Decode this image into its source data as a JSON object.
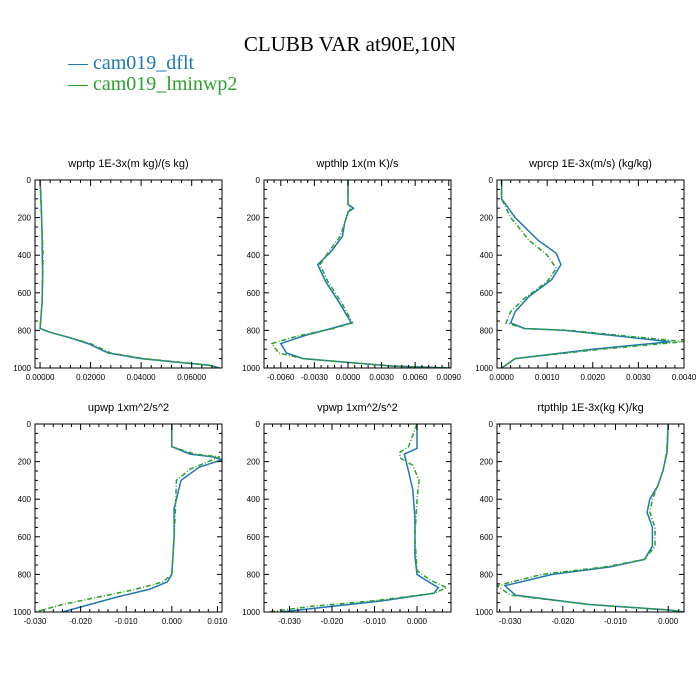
{
  "figure_title": "CLUBB VAR at90E,10N",
  "legend": [
    {
      "marker": "—",
      "label": "cam019_dflt",
      "color": "#1f77b4"
    },
    {
      "marker": "—",
      "label": "cam019_lminwp2",
      "color": "#2ca02c"
    }
  ],
  "chart_data": [
    {
      "type": "line",
      "title": "wprtp  1E-3x(m kg)/(s kg)",
      "xlim": [
        -0.002,
        0.072
      ],
      "ylim": [
        0,
        1000
      ],
      "y_inverted": true,
      "xticks": [
        "0.00000",
        "0.02000",
        "0.04000",
        "0.06000"
      ],
      "xtick_values": [
        0,
        0.02,
        0.04,
        0.06
      ],
      "yticks": [
        "0",
        "200",
        "400",
        "600",
        "800",
        "1000"
      ],
      "ytick_values": [
        0,
        200,
        400,
        600,
        800,
        1000
      ],
      "series": [
        {
          "name": "cam019_dflt",
          "style": "solid",
          "x": [
            0,
            0.0005,
            0.0008,
            0.0009,
            0.001,
            0.0008,
            0.0,
            0.004,
            0.012,
            0.019,
            0.027,
            0.04,
            0.055,
            0.067,
            0.071
          ],
          "y": [
            0,
            150,
            300,
            400,
            500,
            650,
            790,
            810,
            840,
            870,
            920,
            950,
            970,
            985,
            1000
          ]
        },
        {
          "name": "cam019_lminwp2",
          "style": "dash",
          "x": [
            0,
            0.0005,
            0.0009,
            0.0012,
            0.0011,
            0.0008,
            0.0,
            0.004,
            0.012,
            0.02,
            0.028,
            0.041,
            0.056,
            0.067,
            0.071
          ],
          "y": [
            0,
            150,
            300,
            400,
            500,
            650,
            790,
            810,
            840,
            870,
            920,
            950,
            970,
            985,
            1000
          ]
        }
      ]
    },
    {
      "type": "line",
      "title": "wpthlp  1x(m K)/s",
      "xlim": [
        -0.0075,
        0.0092
      ],
      "ylim": [
        0,
        1000
      ],
      "y_inverted": true,
      "xticks": [
        "-0.0060",
        "-0.0030",
        "0.0000",
        "0.0030",
        "0.0060",
        "0.0090"
      ],
      "xtick_values": [
        -0.006,
        -0.003,
        0,
        0.003,
        0.006,
        0.009
      ],
      "yticks": [
        "0",
        "200",
        "400",
        "600",
        "800",
        "1000"
      ],
      "ytick_values": [
        0,
        200,
        400,
        600,
        800,
        1000
      ],
      "series": [
        {
          "name": "cam019_dflt",
          "style": "solid",
          "x": [
            0.0,
            0.0,
            0.0005,
            0.0,
            -0.0003,
            -0.0005,
            -0.0015,
            -0.0027,
            -0.002,
            -0.0008,
            0.0003,
            -0.0015,
            -0.004,
            -0.006,
            -0.0055,
            -0.004,
            0.004,
            0.0092
          ],
          "y": [
            0,
            130,
            150,
            170,
            230,
            300,
            380,
            450,
            540,
            650,
            760,
            790,
            830,
            870,
            920,
            950,
            990,
            1000
          ]
        },
        {
          "name": "cam019_lminwp2",
          "style": "dash",
          "x": [
            0.0,
            0.0,
            0.0003,
            0.0,
            -0.0003,
            -0.0007,
            -0.0017,
            -0.0025,
            -0.0018,
            -0.0006,
            0.0004,
            -0.0013,
            -0.0045,
            -0.0068,
            -0.0062,
            -0.004,
            0.004,
            0.0092
          ],
          "y": [
            0,
            130,
            150,
            170,
            230,
            300,
            380,
            450,
            540,
            650,
            760,
            790,
            830,
            870,
            920,
            950,
            990,
            1000
          ]
        }
      ]
    },
    {
      "type": "line",
      "title": "wprcp  1E-3x(m/s) (kg/kg)",
      "xlim": [
        -0.0001,
        0.004
      ],
      "ylim": [
        0,
        1000
      ],
      "y_inverted": true,
      "xticks": [
        "0.0000",
        "0.0010",
        "0.0020",
        "0.0030",
        "0.0040"
      ],
      "xtick_values": [
        0,
        0.001,
        0.002,
        0.003,
        0.004
      ],
      "yticks": [
        "0",
        "200",
        "400",
        "600",
        "800",
        "1000"
      ],
      "ytick_values": [
        0,
        200,
        400,
        600,
        800,
        1000
      ],
      "series": [
        {
          "name": "cam019_dflt",
          "style": "solid",
          "x": [
            0,
            0,
            0.0003,
            0.0008,
            0.0012,
            0.0013,
            0.0011,
            0.0006,
            0.0003,
            0.0002,
            0.0005,
            0.0014,
            0.0037,
            0.002,
            0.0003,
            0.0
          ],
          "y": [
            0,
            100,
            200,
            320,
            390,
            450,
            530,
            620,
            700,
            760,
            790,
            800,
            860,
            900,
            950,
            1000
          ]
        },
        {
          "name": "cam019_lminwp2",
          "style": "dash",
          "x": [
            0,
            0,
            0.0002,
            0.0006,
            0.001,
            0.0012,
            0.001,
            0.0005,
            0.0002,
            0.0001,
            0.0005,
            0.0015,
            0.004,
            0.0022,
            0.0003,
            0.0
          ],
          "y": [
            0,
            100,
            200,
            320,
            400,
            470,
            540,
            630,
            700,
            760,
            790,
            800,
            860,
            900,
            950,
            1000
          ]
        }
      ]
    },
    {
      "type": "line",
      "title": "upwp  1xm^2/s^2",
      "xlim": [
        -0.03,
        0.011
      ],
      "ylim": [
        0,
        1000
      ],
      "y_inverted": true,
      "xticks": [
        "-0.030",
        "-0.020",
        "-0.010",
        "0.000",
        "0.010"
      ],
      "xtick_values": [
        -0.03,
        -0.02,
        -0.01,
        0,
        0.01
      ],
      "yticks": [
        "0",
        "200",
        "400",
        "600",
        "800",
        "1000"
      ],
      "ytick_values": [
        0,
        200,
        400,
        600,
        800,
        1000
      ],
      "series": [
        {
          "name": "cam019_dflt",
          "style": "solid",
          "x": [
            0.0,
            0.0,
            0.004,
            0.009,
            0.011,
            0.006,
            0.002,
            0.0005,
            0.0005,
            0.0,
            -0.001,
            -0.005,
            -0.012,
            -0.018,
            -0.024
          ],
          "y": [
            0,
            120,
            160,
            175,
            190,
            230,
            300,
            450,
            600,
            800,
            840,
            880,
            920,
            960,
            1000
          ]
        },
        {
          "name": "cam019_lminwp2",
          "style": "dash",
          "x": [
            0.0,
            0.0,
            0.005,
            0.0105,
            0.008,
            0.004,
            0.001,
            0.0008,
            0.0005,
            0.0,
            -0.002,
            -0.008,
            -0.016,
            -0.024,
            -0.03
          ],
          "y": [
            0,
            120,
            160,
            175,
            200,
            240,
            300,
            450,
            600,
            800,
            840,
            880,
            920,
            960,
            1000
          ]
        }
      ]
    },
    {
      "type": "line",
      "title": "vpwp  1xm^2/s^2",
      "xlim": [
        -0.036,
        0.008
      ],
      "ylim": [
        0,
        1000
      ],
      "y_inverted": true,
      "xticks": [
        "-0.030",
        "-0.020",
        "-0.010",
        "0.000"
      ],
      "xtick_values": [
        -0.03,
        -0.02,
        -0.01,
        0
      ],
      "yticks": [
        "0",
        "200",
        "400",
        "600",
        "800",
        "1000"
      ],
      "ytick_values": [
        0,
        200,
        400,
        600,
        800,
        1000
      ],
      "series": [
        {
          "name": "cam019_dflt",
          "style": "solid",
          "x": [
            0.0,
            0.0,
            -0.003,
            -0.002,
            -0.001,
            -0.0005,
            -0.0005,
            0.0,
            0.002,
            0.005,
            0.004,
            -0.008,
            -0.02,
            -0.032
          ],
          "y": [
            0,
            130,
            160,
            250,
            350,
            500,
            700,
            800,
            830,
            870,
            900,
            940,
            970,
            1000
          ]
        },
        {
          "name": "cam019_lminwp2",
          "style": "dash",
          "x": [
            0.0,
            -0.002,
            -0.004,
            -0.004,
            -0.001,
            0.0005,
            0.0,
            -0.0005,
            0.0,
            0.003,
            0.007,
            0.004,
            -0.01,
            -0.025,
            -0.035
          ],
          "y": [
            0,
            120,
            150,
            180,
            220,
            300,
            400,
            600,
            780,
            830,
            870,
            900,
            940,
            970,
            1000
          ]
        }
      ]
    },
    {
      "type": "line",
      "title": "rtpthlp  1E-3x(kg K)/kg",
      "xlim": [
        -0.0325,
        0.003
      ],
      "ylim": [
        0,
        1000
      ],
      "y_inverted": true,
      "xticks": [
        "-0.030",
        "-0.020",
        "-0.010",
        "0.000"
      ],
      "xtick_values": [
        -0.03,
        -0.02,
        -0.01,
        0
      ],
      "yticks": [
        "0",
        "200",
        "400",
        "600",
        "800",
        "1000"
      ],
      "ytick_values": [
        0,
        200,
        400,
        600,
        800,
        1000
      ],
      "series": [
        {
          "name": "cam019_dflt",
          "style": "solid",
          "x": [
            0.0,
            -0.0002,
            -0.001,
            -0.002,
            -0.0035,
            -0.004,
            -0.003,
            -0.003,
            -0.0045,
            -0.011,
            -0.022,
            -0.031,
            -0.029,
            -0.015,
            0.0005,
            0.003
          ],
          "y": [
            0,
            150,
            250,
            330,
            400,
            470,
            550,
            650,
            720,
            760,
            800,
            860,
            910,
            960,
            990,
            1000
          ]
        },
        {
          "name": "cam019_lminwp2",
          "style": "dash",
          "x": [
            0.0,
            -0.0003,
            -0.001,
            -0.002,
            -0.003,
            -0.0035,
            -0.0025,
            -0.0025,
            -0.0045,
            -0.012,
            -0.024,
            -0.0325,
            -0.03,
            -0.015,
            0.0005,
            0.003
          ],
          "y": [
            0,
            150,
            250,
            330,
            400,
            470,
            550,
            650,
            720,
            760,
            800,
            860,
            910,
            960,
            990,
            1000
          ]
        }
      ]
    }
  ]
}
